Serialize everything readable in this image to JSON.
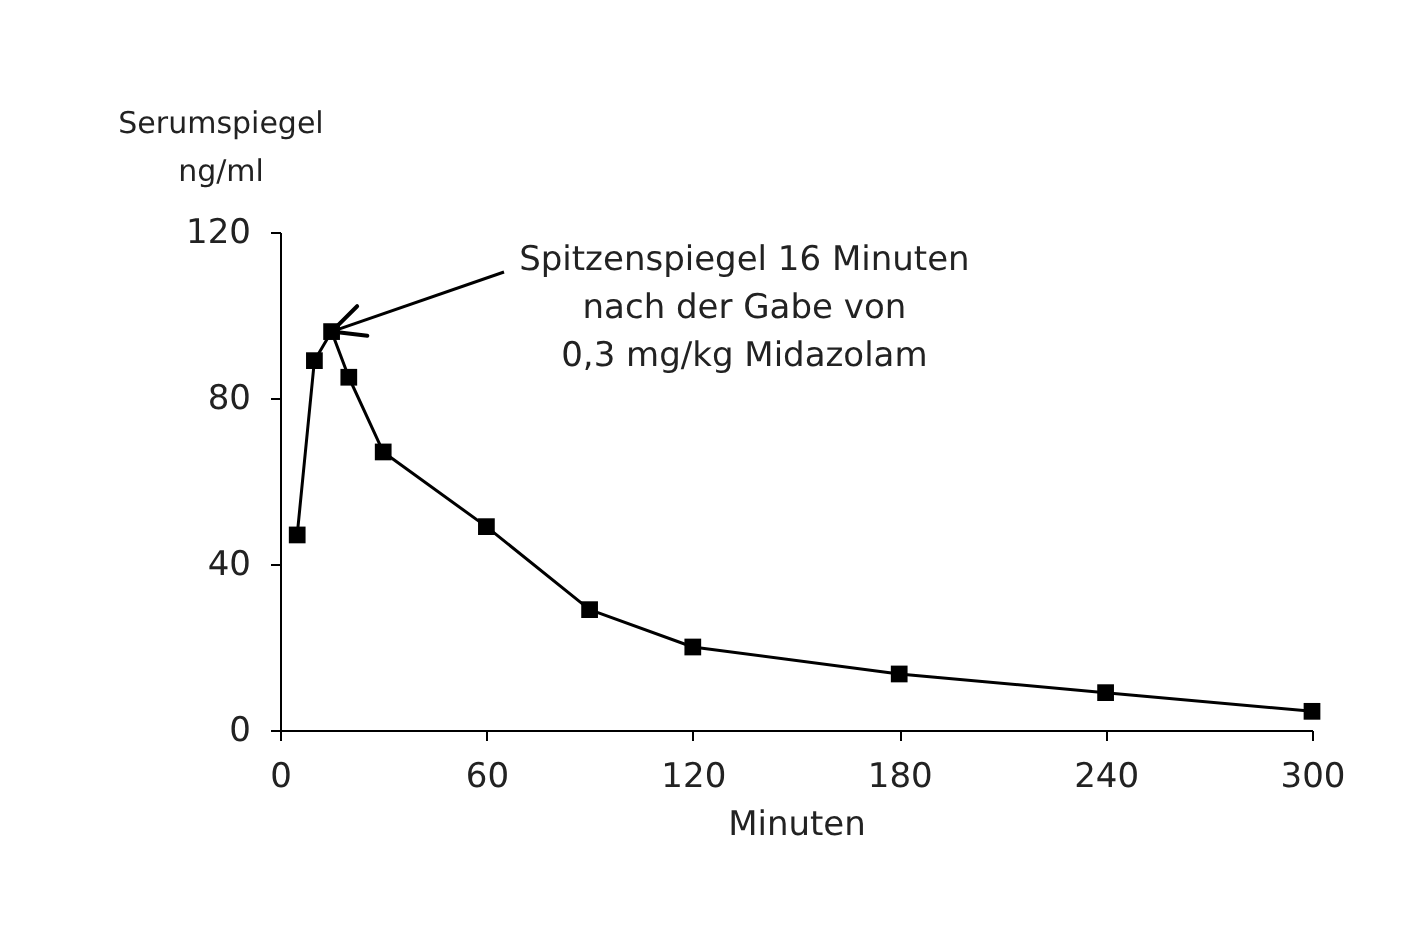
{
  "chart_data": {
    "type": "line",
    "xlabel": "Minuten",
    "ylabel": "Serumspiegel ng/ml",
    "x": [
      5,
      10,
      15,
      20,
      30,
      60,
      90,
      120,
      180,
      240,
      300
    ],
    "series": [
      {
        "color": "#000000",
        "values": [
          47,
          89,
          96,
          85,
          67,
          49,
          29,
          20,
          13.5,
          9,
          4.5
        ]
      }
    ],
    "xlim": [
      0,
      300
    ],
    "xticks": [
      0,
      60,
      120,
      180,
      240,
      300
    ],
    "ylim": [
      0,
      120
    ],
    "yticks": [
      0,
      40,
      80,
      120
    ],
    "marker": "square",
    "line_style": "solid",
    "grid": false,
    "legend": false,
    "annotations": [
      {
        "text": "Spitzenspiegel 16 Minuten\nnach der Gabe von\n0,3 mg/kg Midazolam",
        "x": 15,
        "y": 96
      }
    ]
  }
}
